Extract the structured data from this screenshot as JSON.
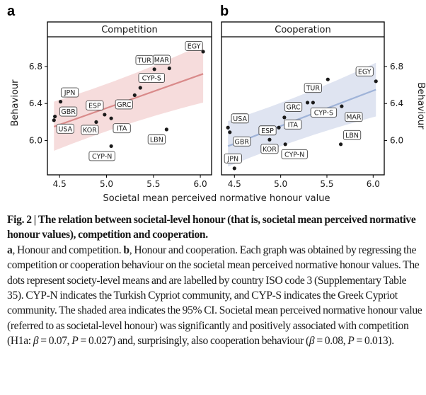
{
  "figure": {
    "panel_labels": [
      "a",
      "b"
    ],
    "shared_xlabel": "Societal mean perceived normative honour value"
  },
  "chart_data": [
    {
      "type": "scatter",
      "panel": "a",
      "title": "Competition",
      "xlabel": "Societal mean perceived normative honour value",
      "ylabel": "Behaviour",
      "y_axis_side": "left",
      "xlim": [
        4.37,
        6.12
      ],
      "ylim": [
        5.63,
        7.12
      ],
      "xticks": [
        "4.5",
        "5.0",
        "5.5",
        "6.0"
      ],
      "xtick_values": [
        4.5,
        5.0,
        5.5,
        6.0
      ],
      "yticks": [
        "6.0",
        "6.4",
        "6.8"
      ],
      "ytick_values": [
        6.0,
        6.4,
        6.8
      ],
      "grid": false,
      "color": "#d98a8a",
      "band_color": "#f6dcdc",
      "points": [
        {
          "label": "EGY",
          "x": 6.03,
          "y": 6.96
        },
        {
          "label": "MAR",
          "x": 5.67,
          "y": 6.78
        },
        {
          "label": "TUR",
          "x": 5.51,
          "y": 6.77
        },
        {
          "label": "CYP-S",
          "x": 5.36,
          "y": 6.57
        },
        {
          "label": "GRC",
          "x": 5.3,
          "y": 6.49
        },
        {
          "label": "JPN",
          "x": 4.51,
          "y": 6.42
        },
        {
          "label": "GBR",
          "x": 4.45,
          "y": 6.26
        },
        {
          "label": "USA",
          "x": 4.44,
          "y": 6.22
        },
        {
          "label": "ESP",
          "x": 4.98,
          "y": 6.28
        },
        {
          "label": "ITA",
          "x": 5.05,
          "y": 6.24
        },
        {
          "label": "KOR",
          "x": 4.89,
          "y": 6.2
        },
        {
          "label": "LBN",
          "x": 5.64,
          "y": 6.12
        },
        {
          "label": "CYP-N",
          "x": 5.05,
          "y": 5.94
        }
      ],
      "fit": {
        "x": [
          4.44,
          6.03
        ],
        "y": [
          6.15,
          6.72
        ]
      },
      "ci_band": {
        "x": [
          4.44,
          6.03
        ],
        "upper": [
          6.42,
          7.04
        ],
        "lower": [
          5.89,
          6.41
        ]
      }
    },
    {
      "type": "scatter",
      "panel": "b",
      "title": "Cooperation",
      "xlabel": "Societal mean perceived normative honour value",
      "ylabel": "Behaviour",
      "y_axis_side": "right",
      "xlim": [
        4.36,
        6.12
      ],
      "ylim": [
        5.63,
        7.12
      ],
      "xticks": [
        "4.5",
        "5.0",
        "5.5",
        "6.0"
      ],
      "xtick_values": [
        4.5,
        5.0,
        5.5,
        6.0
      ],
      "yticks": [
        "6.0",
        "6.4",
        "6.8"
      ],
      "ytick_values": [
        6.0,
        6.4,
        6.8
      ],
      "grid": false,
      "color": "#9fb3d8",
      "band_color": "#dfe4f1",
      "points": [
        {
          "label": "EGY",
          "x": 6.03,
          "y": 6.64
        },
        {
          "label": "TUR",
          "x": 5.51,
          "y": 6.66
        },
        {
          "label": "GRC",
          "x": 5.29,
          "y": 6.41
        },
        {
          "label": "CYP-S",
          "x": 5.35,
          "y": 6.41
        },
        {
          "label": "MAR",
          "x": 5.66,
          "y": 6.37
        },
        {
          "label": "ITA",
          "x": 5.04,
          "y": 6.25
        },
        {
          "label": "USA",
          "x": 4.43,
          "y": 6.14
        },
        {
          "label": "GBR",
          "x": 4.45,
          "y": 6.09
        },
        {
          "label": "ESP",
          "x": 4.98,
          "y": 6.14
        },
        {
          "label": "KOR",
          "x": 4.88,
          "y": 6.01
        },
        {
          "label": "CYP-N",
          "x": 5.05,
          "y": 5.96
        },
        {
          "label": "LBN",
          "x": 5.65,
          "y": 5.96
        },
        {
          "label": "JPN",
          "x": 4.5,
          "y": 5.7
        }
      ],
      "fit": {
        "x": [
          4.43,
          6.03
        ],
        "y": [
          5.94,
          6.55
        ]
      },
      "ci_band": {
        "x": [
          4.43,
          6.03
        ],
        "upper": [
          6.21,
          6.84
        ],
        "lower": [
          5.72,
          6.26
        ]
      }
    }
  ],
  "caption": {
    "fig_label": "Fig. 2 |",
    "title": "The relation between societal-level honour (that is, societal mean perceived normative honour values), competition and cooperation.",
    "a_label": "a",
    "a_text": ", Honour and competition. ",
    "b_label": "b",
    "b_text": ", Honour and cooperation. Each graph was obtained by regressing the competition or cooperation behaviour on the societal mean perceived normative honour values. The dots represent society-level means and are labelled by country ISO code 3 (Supplementary Table 35). CYP-N indicates the Turkish Cypriot community, and CYP-S indicates the Greek Cypriot community. The shaded area indicates the 95% CI. Societal mean perceived normative honour value (referred to as societal-level honour) was significantly and positively associated with competition (H1a: ",
    "beta_symbol": "β",
    "stat1_beta": " = 0.07, ",
    "p_symbol": "P",
    "stat1_p": " = 0.027) and, surprisingly, also cooperation behaviour (",
    "stat2_beta": " = 0.08, ",
    "stat2_p": " = 0.013)."
  }
}
